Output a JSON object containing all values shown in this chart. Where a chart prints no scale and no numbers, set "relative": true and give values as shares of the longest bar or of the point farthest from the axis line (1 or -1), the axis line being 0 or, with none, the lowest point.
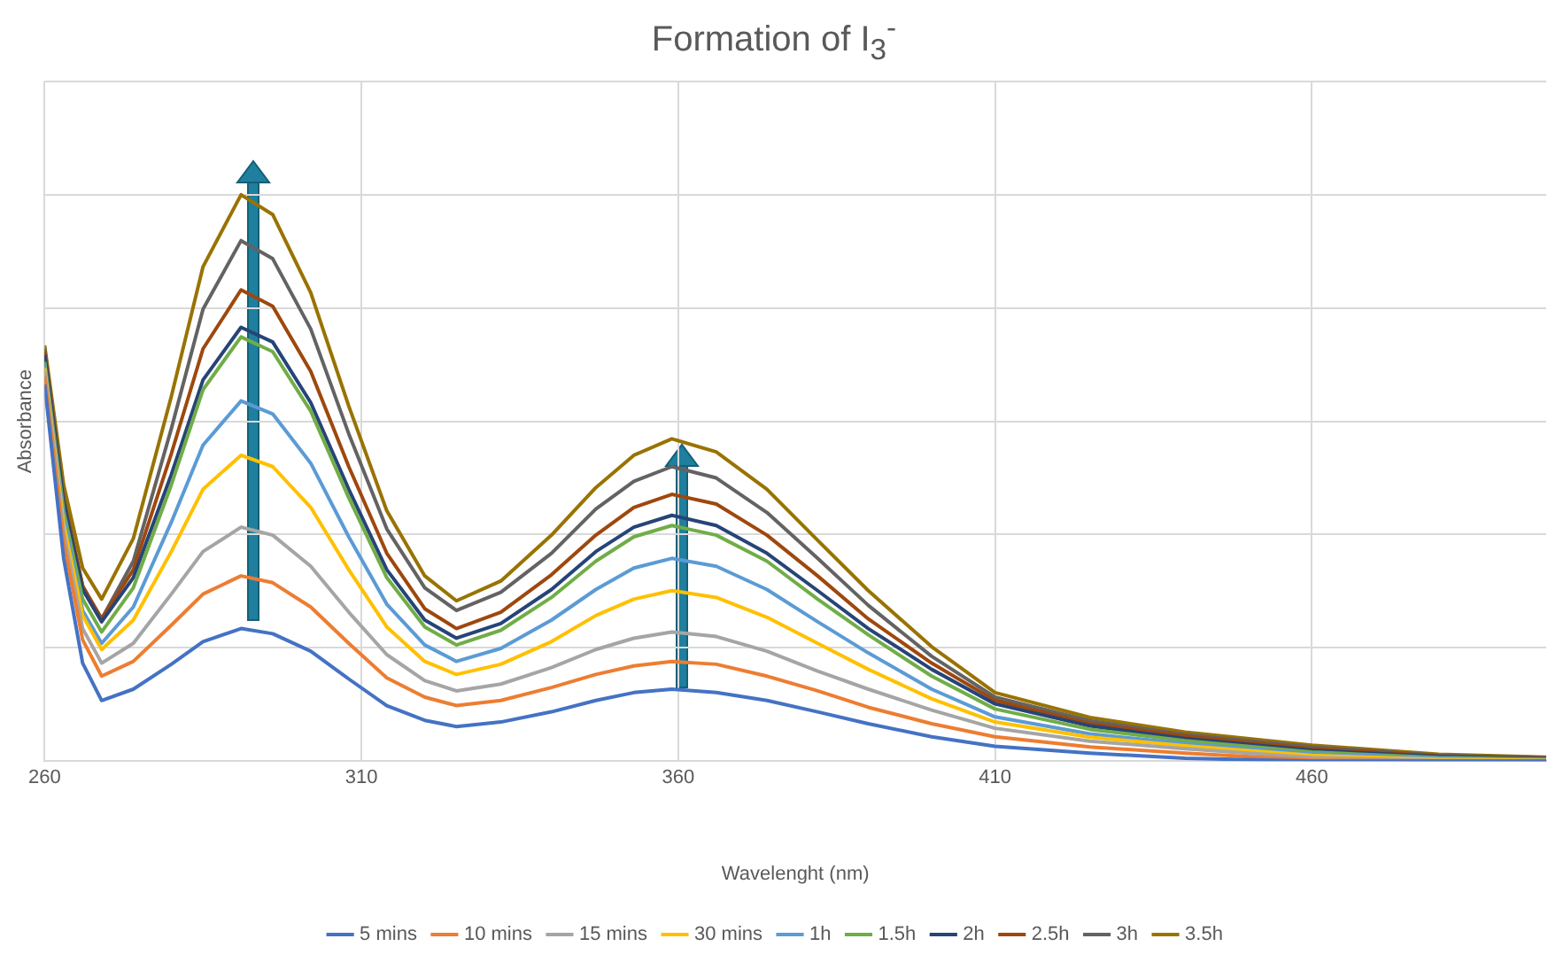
{
  "chart_data": {
    "type": "line",
    "title": "Formation of I$_{3}$$^{-}$",
    "xlabel": "Wavelenght (nm)",
    "ylabel": "Absorbance",
    "relative": true,
    "grid": true,
    "legend": "bottom",
    "marker": "none",
    "line_style": "solid",
    "xlim": [
      260,
      497
    ],
    "xticks": [
      260,
      310,
      360,
      410,
      460
    ],
    "x": [
      260,
      263,
      266,
      269,
      274,
      280,
      285,
      291,
      296,
      302,
      308,
      314,
      320,
      325,
      332,
      340,
      347,
      353,
      359,
      366,
      374,
      382,
      390,
      400,
      410,
      425,
      440,
      460,
      480,
      497
    ],
    "series": [
      {
        "name": "5 mins",
        "color": "#4472c4",
        "values": [
          0.665,
          0.358,
          0.173,
          0.107,
          0.127,
          0.171,
          0.211,
          0.234,
          0.225,
          0.194,
          0.145,
          0.098,
          0.072,
          0.061,
          0.069,
          0.087,
          0.107,
          0.121,
          0.127,
          0.121,
          0.107,
          0.087,
          0.066,
          0.043,
          0.026,
          0.014,
          0.005,
          0,
          0,
          0
        ]
      },
      {
        "name": "10 mins",
        "color": "#ed7d31",
        "values": [
          0.679,
          0.387,
          0.214,
          0.15,
          0.176,
          0.24,
          0.295,
          0.327,
          0.315,
          0.272,
          0.208,
          0.147,
          0.113,
          0.098,
          0.107,
          0.13,
          0.153,
          0.168,
          0.176,
          0.171,
          0.15,
          0.124,
          0.095,
          0.066,
          0.043,
          0.025,
          0.014,
          0.002,
          0,
          0
        ]
      },
      {
        "name": "15 mins",
        "color": "#a5a5a5",
        "values": [
          0.688,
          0.405,
          0.234,
          0.173,
          0.208,
          0.295,
          0.37,
          0.413,
          0.399,
          0.344,
          0.263,
          0.188,
          0.142,
          0.124,
          0.136,
          0.165,
          0.197,
          0.217,
          0.228,
          0.22,
          0.194,
          0.159,
          0.127,
          0.09,
          0.058,
          0.035,
          0.022,
          0.006,
          0.001,
          0
        ]
      },
      {
        "name": "30 mins",
        "color": "#ffc000",
        "values": [
          0.694,
          0.419,
          0.257,
          0.197,
          0.249,
          0.37,
          0.48,
          0.54,
          0.52,
          0.448,
          0.338,
          0.237,
          0.176,
          0.153,
          0.171,
          0.211,
          0.257,
          0.286,
          0.301,
          0.289,
          0.254,
          0.208,
          0.162,
          0.11,
          0.069,
          0.042,
          0.027,
          0.01,
          0.003,
          0.001
        ]
      },
      {
        "name": "1h",
        "color": "#5b9bd5",
        "values": [
          0.699,
          0.431,
          0.266,
          0.208,
          0.272,
          0.422,
          0.558,
          0.636,
          0.613,
          0.526,
          0.396,
          0.277,
          0.205,
          0.176,
          0.199,
          0.249,
          0.303,
          0.341,
          0.358,
          0.344,
          0.303,
          0.246,
          0.191,
          0.127,
          0.078,
          0.048,
          0.031,
          0.013,
          0.005,
          0.002
        ]
      },
      {
        "name": "1.5h",
        "color": "#70ad47",
        "values": [
          0.705,
          0.442,
          0.286,
          0.228,
          0.306,
          0.488,
          0.656,
          0.749,
          0.723,
          0.618,
          0.465,
          0.324,
          0.237,
          0.205,
          0.231,
          0.289,
          0.353,
          0.396,
          0.416,
          0.399,
          0.353,
          0.286,
          0.223,
          0.15,
          0.092,
          0.056,
          0.036,
          0.016,
          0.006,
          0.003
        ]
      },
      {
        "name": "2h",
        "color": "#264478",
        "values": [
          0.717,
          0.457,
          0.303,
          0.246,
          0.324,
          0.506,
          0.673,
          0.766,
          0.74,
          0.633,
          0.48,
          0.338,
          0.249,
          0.217,
          0.243,
          0.303,
          0.37,
          0.413,
          0.434,
          0.416,
          0.367,
          0.301,
          0.234,
          0.162,
          0.101,
          0.062,
          0.04,
          0.019,
          0.008,
          0.004
        ]
      },
      {
        "name": "2.5h",
        "color": "#9e480e",
        "values": [
          0.723,
          0.462,
          0.309,
          0.251,
          0.338,
          0.543,
          0.728,
          0.832,
          0.803,
          0.688,
          0.52,
          0.367,
          0.269,
          0.234,
          0.263,
          0.329,
          0.399,
          0.448,
          0.471,
          0.454,
          0.399,
          0.327,
          0.251,
          0.173,
          0.107,
          0.066,
          0.044,
          0.022,
          0.009,
          0.005
        ]
      },
      {
        "name": "3h",
        "color": "#636363",
        "values": [
          0.728,
          0.465,
          0.309,
          0.251,
          0.353,
          0.587,
          0.798,
          0.919,
          0.887,
          0.763,
          0.578,
          0.41,
          0.306,
          0.266,
          0.298,
          0.367,
          0.445,
          0.494,
          0.52,
          0.5,
          0.439,
          0.358,
          0.275,
          0.185,
          0.113,
          0.071,
          0.047,
          0.025,
          0.01,
          0.006
        ]
      },
      {
        "name": "3.5h",
        "color": "#997300",
        "values": [
          0.734,
          0.488,
          0.341,
          0.286,
          0.393,
          0.644,
          0.873,
          1,
          0.965,
          0.827,
          0.627,
          0.442,
          0.327,
          0.283,
          0.318,
          0.399,
          0.483,
          0.54,
          0.569,
          0.546,
          0.48,
          0.39,
          0.301,
          0.202,
          0.121,
          0.077,
          0.051,
          0.028,
          0.012,
          0.007
        ]
      }
    ]
  }
}
